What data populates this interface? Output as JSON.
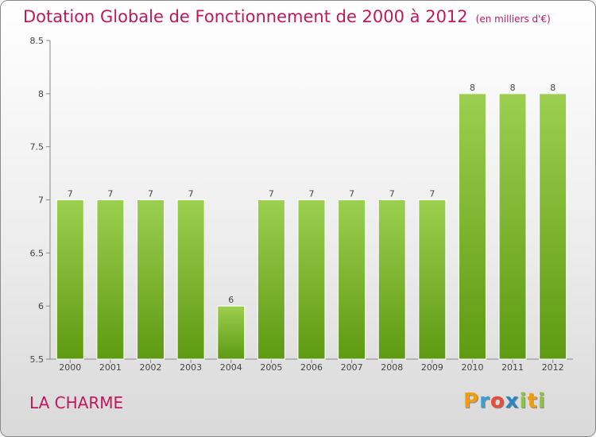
{
  "title": "Dotation Globale de Fonctionnement de 2000 à 2012",
  "subtitle": "(en milliers d'€)",
  "commune": "LA CHARME",
  "logo": {
    "letters": [
      "P",
      "r",
      "o",
      "x",
      "i",
      "t",
      "i"
    ],
    "colors": [
      "#f39c12",
      "#3aa0d8",
      "#e74c3c",
      "#2e86c1",
      "#8cc63f",
      "#f39c12",
      "#8cc63f"
    ]
  },
  "colors": {
    "title": "#c2185b",
    "bar_top": "#9ccf4f",
    "bar_bottom": "#5e9a12"
  },
  "chart_data": {
    "type": "bar",
    "title": "Dotation Globale de Fonctionnement de 2000 à 2012",
    "subtitle": "(en milliers d'€)",
    "categories": [
      "2000",
      "2001",
      "2002",
      "2003",
      "2004",
      "2005",
      "2006",
      "2007",
      "2008",
      "2009",
      "2010",
      "2011",
      "2012"
    ],
    "values": [
      7,
      7,
      7,
      7,
      6,
      7,
      7,
      7,
      7,
      7,
      8,
      8,
      8
    ],
    "data_labels": [
      "7",
      "7",
      "7",
      "7",
      "6",
      "7",
      "7",
      "7",
      "7",
      "7",
      "8",
      "8",
      "8"
    ],
    "ylim": [
      5.5,
      8.5
    ],
    "yticks": [
      5.5,
      6,
      6.5,
      7,
      7.5,
      8,
      8.5
    ],
    "ytick_labels": [
      "5.5",
      "6",
      "6.5",
      "7",
      "7.5",
      "8",
      "8.5"
    ],
    "xlabel": "",
    "ylabel": "",
    "grid": false,
    "legend": "none"
  }
}
